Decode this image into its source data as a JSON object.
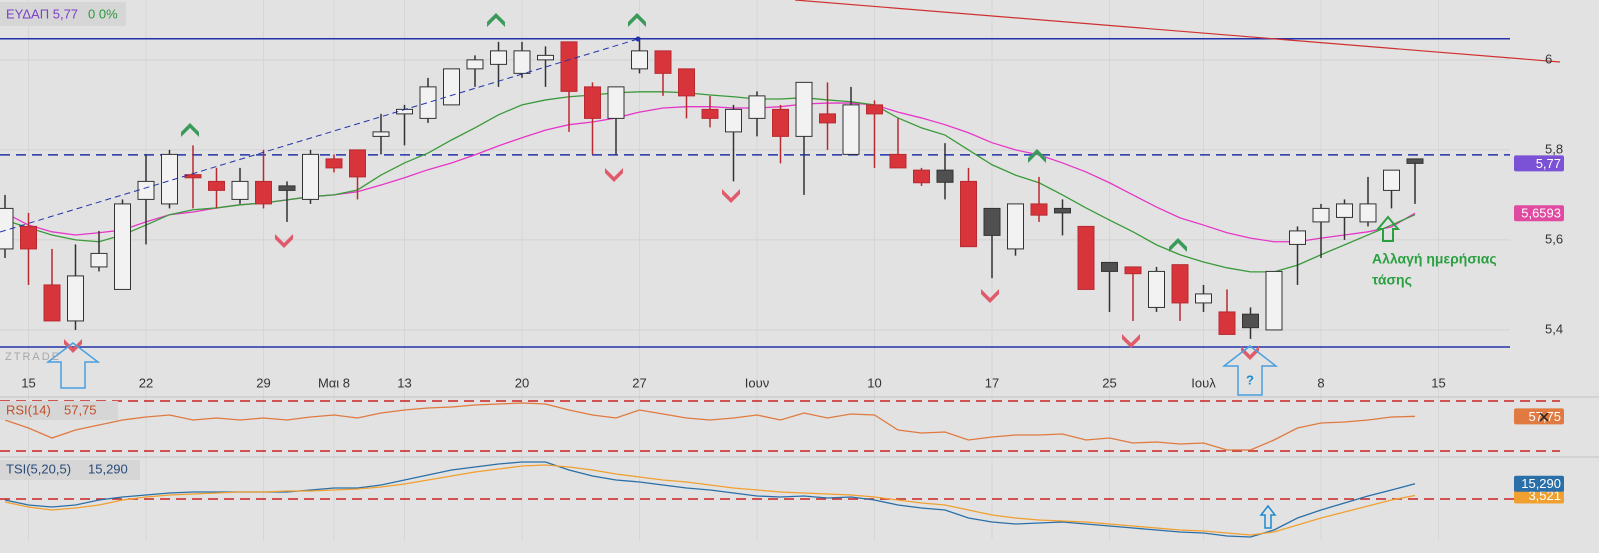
{
  "chart_data": [
    {
      "type": "candlestick",
      "title": "ΕΥΔΑΠ 5,77",
      "change": "0 0%",
      "annotation": [
        "Αλλαγή ημερήσιας",
        "τάσης"
      ],
      "watermark": "ZTRADE",
      "note": "?",
      "categories": [
        null,
        "15",
        null,
        null,
        null,
        null,
        "22",
        null,
        null,
        null,
        null,
        "29",
        null,
        null,
        "Μαι 8",
        null,
        null,
        "13",
        null,
        null,
        null,
        null,
        "20",
        null,
        null,
        null,
        null,
        "27",
        null,
        null,
        null,
        null,
        "Ιουν",
        null,
        null,
        null,
        null,
        "10",
        null,
        null,
        null,
        null,
        "17",
        null,
        null,
        null,
        null,
        "25",
        null,
        null,
        null,
        "Ιουλ",
        null,
        null,
        null,
        null,
        "8",
        null,
        null,
        null,
        null,
        "15"
      ],
      "open": [
        5.58,
        5.63,
        5.5,
        5.42,
        5.54,
        5.49,
        5.69,
        5.68,
        5.745,
        5.73,
        5.69,
        5.73,
        5.72,
        5.69,
        5.78,
        5.8,
        5.83,
        5.88,
        5.87,
        5.9,
        5.98,
        5.99,
        5.97,
        6.0,
        6.04,
        5.94,
        5.87,
        5.98,
        6.02,
        5.98,
        5.89,
        5.84,
        5.87,
        5.89,
        5.83,
        5.88,
        5.79,
        5.9,
        5.79,
        5.755,
        5.755,
        5.73,
        5.67,
        5.58,
        5.68,
        5.67,
        5.63,
        5.55,
        5.54,
        5.45,
        5.545,
        5.46,
        5.44,
        5.435,
        5.4,
        5.59,
        5.64,
        5.65,
        5.64,
        5.71,
        5.78,
        null
      ],
      "high": [
        5.7,
        5.66,
        5.58,
        5.59,
        5.62,
        5.69,
        5.79,
        5.8,
        5.81,
        5.76,
        5.76,
        5.8,
        5.73,
        5.8,
        5.79,
        5.8,
        5.88,
        5.9,
        5.96,
        5.98,
        6.01,
        6.04,
        6.04,
        6.03,
        6.04,
        5.95,
        5.94,
        6.05,
        6.02,
        5.98,
        5.92,
        5.9,
        5.93,
        5.9,
        5.95,
        5.95,
        5.94,
        5.91,
        5.87,
        5.76,
        5.815,
        5.76,
        5.67,
        5.68,
        5.74,
        5.69,
        5.63,
        5.55,
        5.54,
        5.54,
        5.545,
        5.5,
        5.49,
        5.45,
        5.53,
        5.63,
        5.68,
        5.69,
        5.74,
        5.755,
        5.78,
        null
      ],
      "low": [
        5.56,
        5.5,
        5.42,
        5.4,
        5.53,
        5.49,
        5.59,
        5.67,
        5.67,
        5.67,
        5.68,
        5.67,
        5.64,
        5.68,
        5.75,
        5.69,
        5.79,
        5.81,
        5.86,
        5.9,
        5.94,
        5.94,
        5.96,
        5.94,
        5.84,
        5.79,
        5.79,
        5.97,
        5.92,
        5.87,
        5.85,
        5.73,
        5.83,
        5.77,
        5.7,
        5.8,
        5.79,
        5.76,
        5.76,
        5.72,
        5.69,
        5.585,
        5.515,
        5.565,
        5.64,
        5.61,
        5.49,
        5.44,
        5.42,
        5.44,
        5.42,
        5.44,
        5.39,
        5.38,
        5.4,
        5.5,
        5.56,
        5.6,
        5.63,
        5.67,
        5.68,
        null
      ],
      "close": [
        5.67,
        5.58,
        5.42,
        5.52,
        5.57,
        5.68,
        5.73,
        5.79,
        5.738,
        5.71,
        5.73,
        5.68,
        5.71,
        5.79,
        5.76,
        5.74,
        5.84,
        5.89,
        5.94,
        5.98,
        6.0,
        6.02,
        6.02,
        6.01,
        5.93,
        5.87,
        5.94,
        6.02,
        5.97,
        5.92,
        5.87,
        5.89,
        5.92,
        5.83,
        5.95,
        5.86,
        5.9,
        5.88,
        5.76,
        5.727,
        5.728,
        5.585,
        5.61,
        5.68,
        5.655,
        5.66,
        5.49,
        5.53,
        5.525,
        5.53,
        5.46,
        5.48,
        5.39,
        5.405,
        5.53,
        5.62,
        5.67,
        5.68,
        5.68,
        5.755,
        5.77,
        null
      ],
      "colors": {
        "up": "#f2f2f2",
        "down": "#d8343b",
        "hold": "#505050"
      },
      "series": [
        {
          "color": "#e636c8",
          "values": [
            5.66,
            5.633,
            5.618,
            5.611,
            5.616,
            5.622,
            5.64,
            5.656,
            5.662,
            5.671,
            5.678,
            5.682,
            5.689,
            5.696,
            5.7,
            5.707,
            5.722,
            5.738,
            5.756,
            5.771,
            5.789,
            5.809,
            5.827,
            5.844,
            5.856,
            5.862,
            5.871,
            5.884,
            5.893,
            5.896,
            5.896,
            5.893,
            5.893,
            5.896,
            5.902,
            5.904,
            5.904,
            5.9,
            5.884,
            5.871,
            5.856,
            5.838,
            5.816,
            5.8,
            5.789,
            5.771,
            5.751,
            5.727,
            5.7,
            5.673,
            5.649,
            5.633,
            5.616,
            5.604,
            5.596,
            5.596,
            5.604,
            5.611,
            5.618,
            5.629,
            5.6593,
            null
          ]
        },
        {
          "color": "#3a9a3a",
          "values": [
            5.644,
            5.627,
            5.611,
            5.6,
            5.596,
            5.611,
            5.633,
            5.656,
            5.667,
            5.671,
            5.678,
            5.682,
            5.689,
            5.696,
            5.7,
            5.711,
            5.744,
            5.771,
            5.793,
            5.822,
            5.849,
            5.878,
            5.9,
            5.911,
            5.918,
            5.922,
            5.927,
            5.929,
            5.929,
            5.927,
            5.922,
            5.918,
            5.913,
            5.913,
            5.916,
            5.911,
            5.907,
            5.9,
            5.871,
            5.849,
            5.833,
            5.8,
            5.767,
            5.744,
            5.727,
            5.7,
            5.671,
            5.644,
            5.618,
            5.589,
            5.567,
            5.551,
            5.538,
            5.529,
            5.529,
            5.544,
            5.567,
            5.589,
            5.611,
            5.633,
            5.656,
            null
          ]
        }
      ],
      "levels": [
        {
          "value": 6.047,
          "color": "#2233aa",
          "dashed": false
        },
        {
          "value": 5.789,
          "color": "#2233aa",
          "dashed": true
        },
        {
          "value": 5.362,
          "color": "#2233aa",
          "dashed": false
        }
      ],
      "tags": [
        {
          "value": 5.77,
          "label": "5,77",
          "color": "#7b52d6"
        },
        {
          "value": 5.6593,
          "label": "5,6593",
          "color": "#e04aa0"
        }
      ],
      "ylim": [
        5.311,
        6.133
      ],
      "yticks": [
        {
          "value": 5.4,
          "label": "5,4"
        },
        {
          "value": 5.6,
          "label": "5,6"
        },
        {
          "value": 5.8,
          "label": "5,8"
        },
        6
      ],
      "grid": true
    },
    {
      "type": "line",
      "title": "RSI(14)",
      "value_label": "57,75",
      "series": [
        {
          "color": "#e07a40",
          "values": [
            54.8,
            48.4,
            40.4,
            46.8,
            50.8,
            54.8,
            57.2,
            58.8,
            54.8,
            56.4,
            54.8,
            56.4,
            54.8,
            57.2,
            58.8,
            56.4,
            60.4,
            62.8,
            64.4,
            65.2,
            66.8,
            67.6,
            68.4,
            67.6,
            62.8,
            58.8,
            56.4,
            62.8,
            59.6,
            56.4,
            54.8,
            56.4,
            58.8,
            54.8,
            60.4,
            56.4,
            59.6,
            58.8,
            46.8,
            44.4,
            45.2,
            38.8,
            41.2,
            42.8,
            42.8,
            43.6,
            38.8,
            40.4,
            36.4,
            37.2,
            35.6,
            36.4,
            30.8,
            30.8,
            38.8,
            48.4,
            52.4,
            53.2,
            54.8,
            57.2,
            57.75,
            null
          ]
        }
      ],
      "levels": [
        {
          "value": 70,
          "color": "#cc2222",
          "dashed": true
        },
        {
          "value": 30,
          "color": "#cc2222",
          "dashed": true
        }
      ],
      "tags": [
        {
          "value": 57.75,
          "label": "57,75",
          "color": "#e07a40"
        }
      ],
      "ylim": [
        25.2,
        72.4
      ]
    },
    {
      "type": "line",
      "title": "TSI(5,20,5)",
      "value_label": "15,290",
      "series": [
        {
          "color": "#2a6fa8",
          "values": [
            -1,
            -6,
            -8,
            -6,
            -1,
            2,
            4,
            6,
            7,
            7,
            7,
            7,
            7,
            9,
            11,
            11,
            14,
            19,
            24,
            29,
            32,
            35,
            37,
            37,
            29,
            23,
            19,
            17,
            14,
            11,
            9,
            6,
            3,
            2,
            3,
            1,
            2,
            -1,
            -6,
            -9,
            -11,
            -19,
            -23,
            -25,
            -24,
            -23,
            -25,
            -27,
            -29,
            -31,
            -33,
            -34,
            -37,
            -38,
            -31,
            -19,
            -11,
            -4,
            3,
            9,
            15.29,
            null
          ]
        },
        {
          "color": "#f0a030",
          "values": [
            -3,
            -8,
            -11,
            -9,
            -6,
            -1,
            2,
            4,
            5,
            6,
            7,
            7,
            8,
            8,
            9,
            10,
            12,
            15,
            19,
            23,
            27,
            30,
            33,
            34,
            32,
            29,
            25,
            22,
            19,
            17,
            14,
            11,
            9,
            7,
            6,
            5,
            4,
            2,
            -1,
            -4,
            -6,
            -11,
            -16,
            -19,
            -21,
            -22,
            -23,
            -25,
            -27,
            -29,
            -31,
            -32,
            -34,
            -36,
            -33,
            -26,
            -19,
            -13,
            -7,
            -1,
            3.521,
            null
          ]
        }
      ],
      "levels": [
        {
          "value": 0,
          "color": "#cc2222",
          "dashed": true
        }
      ],
      "tags": [
        {
          "value": 3.521,
          "label": "3,521",
          "color": "#f0a030"
        },
        {
          "value": 15.29,
          "label": "15,290",
          "color": "#2a6fa8"
        }
      ],
      "ylim": [
        -41,
        41
      ]
    }
  ]
}
